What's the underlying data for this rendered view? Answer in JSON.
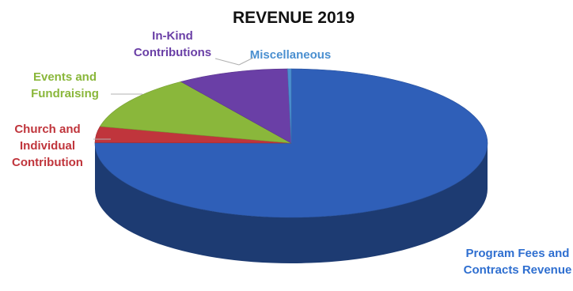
{
  "chart_data": {
    "type": "pie",
    "title": "REVENUE 2019",
    "style": "3d",
    "slices": [
      {
        "label": "Program Fees and Contracts Revenue",
        "label_lines": [
          "Program Fees and",
          "Contracts Revenue"
        ],
        "value": 75.1,
        "color": "#2f5fb8"
      },
      {
        "label": "Church and Individual Contribution",
        "label_lines": [
          "Church and",
          "Individual",
          "Contribution"
        ],
        "value": 3.5,
        "color": "#c0353c"
      },
      {
        "label": "Events and Fundraising",
        "label_lines": [
          "Events and",
          "Fundraising"
        ],
        "value": 11.9,
        "color": "#8ab73b"
      },
      {
        "label": "In-Kind Contributions",
        "label_lines": [
          "In-Kind",
          "Contributions"
        ],
        "value": 9.2,
        "color": "#6a3fa6"
      },
      {
        "label": "Miscellaneous",
        "label_lines": [
          "Miscellaneous"
        ],
        "value": 0.3,
        "color": "#4a8fd0"
      }
    ]
  }
}
